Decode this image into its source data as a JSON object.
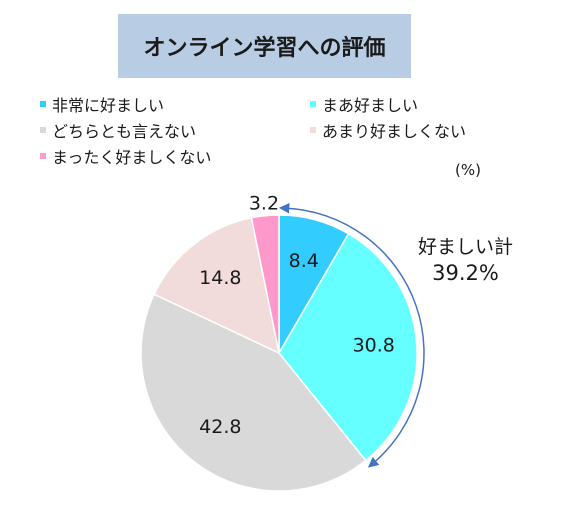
{
  "chart_data": {
    "type": "pie",
    "title": "オンライン学習への評価",
    "unit_label": "(%)",
    "start_angle_deg": 0,
    "direction": "clockwise",
    "categories": [
      "非常に好ましい",
      "まあ好ましい",
      "どちらとも言えない",
      "あまり好ましくない",
      "まったく好ましくない"
    ],
    "values": [
      8.4,
      30.8,
      42.8,
      14.8,
      3.2
    ],
    "value_labels": [
      "8.4",
      "30.8",
      "42.8",
      "14.8",
      "3.2"
    ],
    "colors": [
      "#33ccff",
      "#66ffff",
      "#d9d9d9",
      "#f2dcdb",
      "#ff99cc"
    ],
    "legend_position": "top",
    "annotation": {
      "label": "好ましい計",
      "value": "39.2%",
      "arrow_color": "#4472c4"
    }
  }
}
